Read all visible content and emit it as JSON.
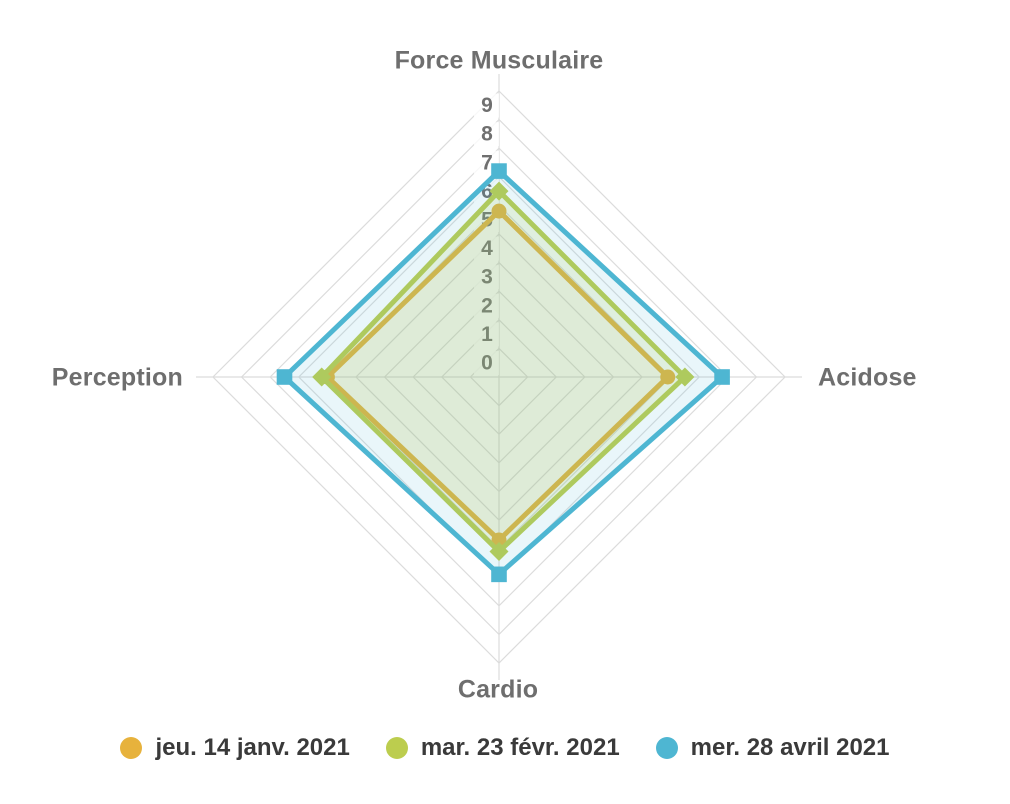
{
  "chart_data": {
    "type": "radar",
    "categories": [
      "Force Musculaire",
      "Acidose",
      "Cardio",
      "Perception"
    ],
    "category_positions": [
      "top",
      "right",
      "bottom",
      "left"
    ],
    "scale": {
      "min": 0,
      "max": 10,
      "step": 1,
      "tick_labels": [
        "0",
        "1",
        "2",
        "3",
        "4",
        "5",
        "6",
        "7",
        "8",
        "9"
      ]
    },
    "grid": {
      "shape": "polygon",
      "rings": 10,
      "color": "#DCDCDC"
    },
    "legend_position": "bottom",
    "legend_marker": "circle",
    "series": [
      {
        "name": "jeu. 14 janv. 2021",
        "color": "#E7B23C",
        "fill_opacity": 0.06,
        "point_style": "circle",
        "values": [
          5.8,
          5.9,
          5.7,
          6.0
        ]
      },
      {
        "name": "mar. 23 févr. 2021",
        "color": "#BCCD4E",
        "fill_opacity": 0.17,
        "point_style": "diamond",
        "values": [
          6.5,
          6.5,
          6.1,
          6.2
        ]
      },
      {
        "name": "mer. 28 avril 2021",
        "color": "#4EB6D2",
        "fill_opacity": 0.12,
        "point_style": "square",
        "values": [
          7.2,
          7.8,
          6.9,
          7.5
        ]
      }
    ]
  },
  "colors": {
    "background": "#FFFFFF",
    "axis_title_text": "#6E6E6E",
    "tick_text": "#6F6F6F",
    "legend_text": "#3A3A3A",
    "tick_backdrop": "rgba(255,255,255,0.8)"
  }
}
